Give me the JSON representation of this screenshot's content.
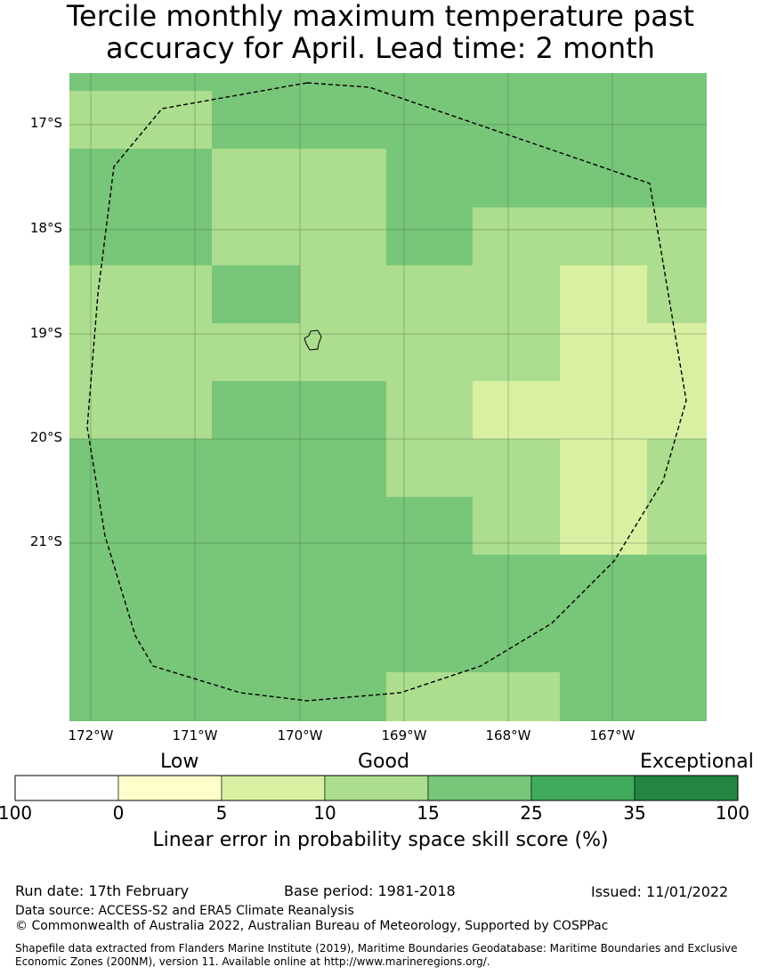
{
  "map": {
    "title_line1": "Tercile monthly maximum temperature past",
    "title_line2": "accuracy for April. Lead time: 2 month",
    "lat_labels": [
      "17°S",
      "18°S",
      "19°S",
      "20°S",
      "21°S"
    ],
    "lon_labels": [
      "172°W",
      "171°W",
      "170°W",
      "169°W",
      "168°W",
      "167°W"
    ],
    "category_colors": {
      "c0": "#ffffcc",
      "c1": "#d9f0a3",
      "c2": "#addd8e",
      "c3": "#78c679",
      "c4": "#41ab5d",
      "c5": "#238443"
    },
    "grid_rows": [
      [
        3,
        3,
        3,
        3,
        3,
        3,
        3
      ],
      [
        2,
        3,
        3,
        3,
        3,
        3,
        3
      ],
      [
        3,
        2,
        2,
        3,
        3,
        3,
        3
      ],
      [
        3,
        2,
        2,
        3,
        2,
        2,
        2
      ],
      [
        2,
        3,
        2,
        2,
        2,
        1,
        2
      ],
      [
        2,
        2,
        2,
        2,
        2,
        1,
        1
      ],
      [
        2,
        3,
        3,
        2,
        1,
        1,
        1
      ],
      [
        3,
        3,
        3,
        2,
        2,
        1,
        2
      ],
      [
        3,
        3,
        3,
        3,
        2,
        1,
        2
      ],
      [
        3,
        3,
        3,
        3,
        3,
        3,
        3
      ],
      [
        3,
        3,
        3,
        3,
        3,
        3,
        3
      ],
      [
        3,
        3,
        3,
        2,
        2,
        3,
        3
      ]
    ]
  },
  "legend": {
    "categories": [
      "Low",
      "Good",
      "Exceptional"
    ],
    "ticks": [
      "100",
      "0",
      "5",
      "10",
      "15",
      "25",
      "35",
      "100"
    ],
    "colors": [
      "#ffffff",
      "#ffffcc",
      "#d9f0a3",
      "#addd8e",
      "#78c679",
      "#41ab5d",
      "#238443"
    ],
    "title": "Linear error in probability space skill score (%)"
  },
  "footer": {
    "run_date": "Run date: 17th February",
    "base_period": "Base period: 1981-2018",
    "issued": "Issued: 11/01/2022",
    "data_source": "Data source: ACCESS-S2 and ERA5 Climate Reanalysis",
    "copyright": "© Commonwealth of Australia 2022, Australian Bureau of Meteorology, Supported by COSPPac",
    "shapefile_line1": "Shapefile data extracted from Flanders Marine Institute (2019), Maritime Boundaries Geodatabase: Maritime Boundaries and Exclusive",
    "shapefile_line2": "Economic Zones (200NM), version 11. Available online at http://www.marineregions.org/."
  }
}
